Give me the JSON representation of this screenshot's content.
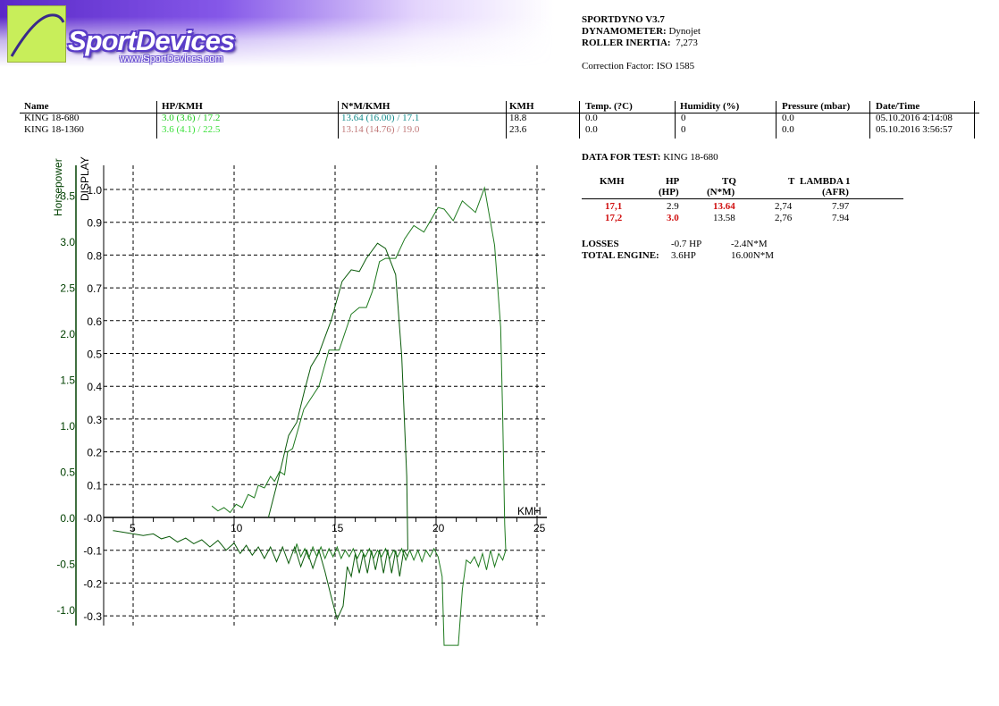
{
  "logo": {
    "brand": "SportDevices",
    "url": "www.SportDevices.com",
    "colors": {
      "square": "#c8ee5a",
      "banner": "#5a28c8"
    }
  },
  "info": {
    "software": "SPORTDYNO V3.7",
    "dyno_label": "DYNAMOMETER:",
    "dyno_value": "Dynojet",
    "inertia_label": "ROLLER INERTIA:",
    "inertia_value": "7,273",
    "correction": "Correction Factor: ISO 1585"
  },
  "runs": {
    "headers": [
      "Name",
      "HP/KMH",
      "N*M/KMH",
      "KMH",
      "Temp. (?C)",
      "Humidity (%)",
      "Pressure (mbar)",
      "Date/Time"
    ],
    "rows": [
      {
        "name": "KING 18-680",
        "hp": "3.0 (3.6) / 17.2",
        "tq": "13.64 (16.00) / 17.1",
        "kmh": "18.8",
        "temp": "0.0",
        "humidity": "0",
        "pressure": "0.0",
        "datetime": "05.10.2016 4:14:08",
        "hp_color": "#1cc81c",
        "tq_color": "#108a8a"
      },
      {
        "name": "KING 18-1360",
        "hp": "3.6 (4.1) / 22.5",
        "tq": "13.14 (14.76) / 19.0",
        "kmh": "23.6",
        "temp": "0.0",
        "humidity": "0",
        "pressure": "0.0",
        "datetime": "05.10.2016 3:56:57",
        "hp_color": "#3ce03c",
        "tq_color": "#c07878"
      }
    ]
  },
  "test": {
    "label": "DATA FOR TEST:",
    "value": "KING 18-680",
    "headers": {
      "kmh": "KMH",
      "hp": "HP",
      "hp_unit": "(HP)",
      "tq": "TQ",
      "tq_unit": "(N*M)",
      "t": "T",
      "lambda": "LAMBDA 1",
      "lambda_unit": "(AFR)"
    },
    "rows": [
      {
        "kmh": "17,1",
        "hp": "2.9",
        "tq": "13.64",
        "t": "2,74",
        "lambda": "7.97",
        "hp_red": false,
        "tq_red": true
      },
      {
        "kmh": "17,2",
        "hp": "3.0",
        "tq": "13.58",
        "t": "2,76",
        "lambda": "7.94",
        "hp_red": true,
        "tq_red": false
      }
    ],
    "losses_label": "LOSSES",
    "losses_hp": "-0.7 HP",
    "losses_tq": "-2.4N*M",
    "total_label": "TOTAL ENGINE:",
    "total_hp": "3.6HP",
    "total_tq": "16.00N*M"
  },
  "chart_data": {
    "type": "line",
    "xlabel": "KMH",
    "ylabel_outer": "Horsepower",
    "ylabel_inner": "DISPLAY",
    "xlim": [
      3.8,
      25.5
    ],
    "ylim_display": [
      -0.33,
      1.05
    ],
    "ylim_hp": [
      -1.17,
      3.74
    ],
    "x_ticks": [
      5,
      10,
      15,
      20,
      25
    ],
    "y_ticks_display": [
      1.0,
      0.9,
      0.8,
      0.7,
      0.6,
      0.5,
      0.4,
      0.3,
      0.2,
      0.1,
      0.0,
      -0.1,
      -0.2,
      -0.3
    ],
    "y_tick_labels_display": [
      "1.0",
      "0.9",
      "0.8",
      "0.7",
      "0.6",
      "0.5",
      "0.4",
      "0.3",
      "0.2",
      "0.1",
      "-0.0",
      "-0.1",
      "-0.2",
      "-0.3"
    ],
    "y_ticks_hp": [
      3.5,
      3.0,
      2.5,
      2.0,
      1.5,
      1.0,
      0.5,
      0.0,
      -0.5,
      -1.0
    ],
    "y_tick_labels_hp": [
      "3.5",
      "3.0",
      "2.5",
      "2.0",
      "1.5",
      "1.0",
      "0.5",
      "0.0",
      "-0.5",
      "-1.0"
    ],
    "grid": true,
    "colors": {
      "axis_hp": "#004000",
      "curve_a": "#0a5a0a",
      "curve_b": "#1e7a1e"
    },
    "series": [
      {
        "color": "#0a5a0a",
        "points": [
          [
            11.7,
            0.0
          ],
          [
            12.2,
            0.12
          ],
          [
            12.7,
            0.25
          ],
          [
            13.1,
            0.29
          ],
          [
            13.5,
            0.39
          ],
          [
            13.8,
            0.46
          ],
          [
            14.2,
            0.5
          ],
          [
            14.8,
            0.6
          ],
          [
            15.35,
            0.72
          ],
          [
            15.8,
            0.755
          ],
          [
            16.2,
            0.75
          ],
          [
            16.55,
            0.79
          ],
          [
            17.1,
            0.836
          ],
          [
            17.5,
            0.82
          ],
          [
            18.0,
            0.74
          ],
          [
            18.3,
            0.49
          ],
          [
            18.55,
            0.125
          ],
          [
            18.6,
            -0.1
          ]
        ]
      },
      {
        "color": "#1e7a1e",
        "points": [
          [
            8.9,
            0.035
          ],
          [
            9.2,
            0.02
          ],
          [
            9.5,
            0.03
          ],
          [
            9.8,
            0.015
          ],
          [
            10.1,
            0.04
          ],
          [
            10.4,
            0.03
          ],
          [
            10.7,
            0.07
          ],
          [
            11.0,
            0.06
          ],
          [
            11.2,
            0.098
          ],
          [
            11.5,
            0.09
          ],
          [
            11.8,
            0.125
          ],
          [
            12.0,
            0.11
          ],
          [
            12.25,
            0.14
          ],
          [
            12.5,
            0.13
          ],
          [
            12.65,
            0.2
          ],
          [
            12.9,
            0.21
          ],
          [
            13.45,
            0.33
          ],
          [
            14.2,
            0.4
          ],
          [
            14.7,
            0.51
          ],
          [
            14.9,
            0.51
          ],
          [
            15.2,
            0.51
          ],
          [
            15.8,
            0.62
          ],
          [
            16.2,
            0.64
          ],
          [
            16.55,
            0.64
          ],
          [
            16.85,
            0.69
          ],
          [
            17.2,
            0.78
          ],
          [
            17.5,
            0.79
          ],
          [
            18.0,
            0.79
          ],
          [
            18.45,
            0.85
          ],
          [
            18.9,
            0.89
          ],
          [
            19.4,
            0.87
          ],
          [
            20.1,
            0.945
          ],
          [
            20.4,
            0.94
          ],
          [
            20.85,
            0.905
          ],
          [
            21.3,
            0.965
          ],
          [
            21.95,
            0.93
          ],
          [
            22.4,
            1.005
          ],
          [
            22.9,
            0.83
          ],
          [
            23.2,
            0.58
          ],
          [
            23.3,
            0.305
          ],
          [
            23.4,
            -0.02
          ],
          [
            23.45,
            -0.1
          ]
        ]
      },
      {
        "color": "#0a5a0a",
        "points": [
          [
            4.0,
            -0.04
          ],
          [
            4.5,
            -0.045
          ],
          [
            5.0,
            -0.05
          ],
          [
            5.5,
            -0.055
          ],
          [
            6.0,
            -0.05
          ],
          [
            6.4,
            -0.065
          ],
          [
            6.8,
            -0.058
          ],
          [
            7.2,
            -0.075
          ],
          [
            7.6,
            -0.063
          ],
          [
            8.0,
            -0.08
          ],
          [
            8.4,
            -0.068
          ],
          [
            8.8,
            -0.09
          ],
          [
            9.2,
            -0.07
          ],
          [
            9.6,
            -0.1
          ],
          [
            10.0,
            -0.078
          ],
          [
            10.3,
            -0.11
          ],
          [
            10.6,
            -0.085
          ],
          [
            10.9,
            -0.115
          ],
          [
            11.2,
            -0.09
          ],
          [
            11.5,
            -0.125
          ],
          [
            11.8,
            -0.09
          ],
          [
            12.1,
            -0.135
          ],
          [
            12.4,
            -0.09
          ],
          [
            12.7,
            -0.14
          ],
          [
            13.0,
            -0.09
          ],
          [
            13.3,
            -0.15
          ],
          [
            13.6,
            -0.1
          ],
          [
            13.9,
            -0.155
          ],
          [
            14.2,
            -0.1
          ],
          [
            14.5,
            -0.165
          ],
          [
            14.8,
            -0.24
          ],
          [
            15.1,
            -0.31
          ],
          [
            15.4,
            -0.27
          ],
          [
            15.6,
            -0.15
          ],
          [
            15.8,
            -0.18
          ],
          [
            16.0,
            -0.11
          ],
          [
            16.2,
            -0.17
          ],
          [
            16.4,
            -0.11
          ],
          [
            16.6,
            -0.17
          ],
          [
            16.8,
            -0.1
          ],
          [
            17.0,
            -0.16
          ],
          [
            17.2,
            -0.1
          ],
          [
            17.4,
            -0.17
          ],
          [
            17.6,
            -0.1
          ],
          [
            17.8,
            -0.17
          ],
          [
            18.0,
            -0.1
          ],
          [
            18.2,
            -0.18
          ],
          [
            18.4,
            -0.1
          ],
          [
            18.6,
            -0.12
          ]
        ]
      },
      {
        "color": "#1e7a1e",
        "points": [
          [
            13.0,
            -0.11
          ],
          [
            13.1,
            -0.08
          ],
          [
            13.3,
            -0.12
          ],
          [
            13.5,
            -0.095
          ],
          [
            13.7,
            -0.125
          ],
          [
            13.9,
            -0.09
          ],
          [
            14.1,
            -0.12
          ],
          [
            14.3,
            -0.09
          ],
          [
            14.5,
            -0.125
          ],
          [
            14.7,
            -0.095
          ],
          [
            14.9,
            -0.12
          ],
          [
            15.1,
            -0.09
          ],
          [
            15.3,
            -0.125
          ],
          [
            15.5,
            -0.1
          ],
          [
            15.7,
            -0.12
          ],
          [
            15.9,
            -0.095
          ],
          [
            16.1,
            -0.125
          ],
          [
            16.3,
            -0.1
          ],
          [
            16.5,
            -0.12
          ],
          [
            16.7,
            -0.095
          ],
          [
            16.9,
            -0.125
          ],
          [
            17.1,
            -0.1
          ],
          [
            17.3,
            -0.12
          ],
          [
            17.5,
            -0.095
          ],
          [
            17.7,
            -0.125
          ],
          [
            17.9,
            -0.1
          ],
          [
            18.1,
            -0.12
          ],
          [
            18.3,
            -0.095
          ],
          [
            18.5,
            -0.13
          ],
          [
            18.7,
            -0.1
          ],
          [
            18.9,
            -0.13
          ],
          [
            19.1,
            -0.1
          ],
          [
            19.3,
            -0.135
          ],
          [
            19.5,
            -0.1
          ],
          [
            19.7,
            -0.12
          ],
          [
            19.9,
            -0.095
          ],
          [
            20.1,
            -0.12
          ],
          [
            20.3,
            -0.18
          ],
          [
            20.4,
            -0.39
          ],
          [
            21.1,
            -0.39
          ],
          [
            21.3,
            -0.22
          ],
          [
            21.5,
            -0.13
          ],
          [
            21.7,
            -0.14
          ],
          [
            21.9,
            -0.12
          ],
          [
            22.1,
            -0.15
          ],
          [
            22.3,
            -0.11
          ],
          [
            22.5,
            -0.16
          ],
          [
            22.7,
            -0.1
          ],
          [
            22.9,
            -0.15
          ],
          [
            23.1,
            -0.11
          ],
          [
            23.3,
            -0.13
          ],
          [
            23.45,
            -0.1
          ]
        ]
      }
    ]
  }
}
